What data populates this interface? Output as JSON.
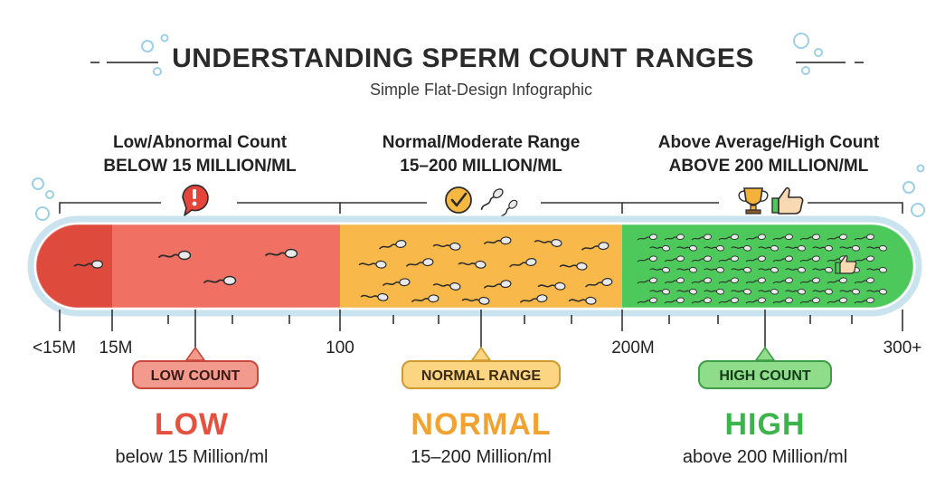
{
  "header": {
    "title": "UNDERSTANDING SPERM COUNT RANGES",
    "subtitle": "Simple Flat-Design Infographic"
  },
  "zones": [
    {
      "heading": "Low/Abnormal Count",
      "range_text": "BELOW 15 MILLION/ML",
      "badge": "LOW COUNT",
      "big_label": "LOW",
      "description": "below 15 Million/ml",
      "icon": "exclamation-speech-icon",
      "color": "#ef6a5a",
      "dark_color": "#de4a3c"
    },
    {
      "heading": "Normal/Moderate Range",
      "range_text": "15–200 MILLION/ML",
      "badge": "NORMAL RANGE",
      "big_label": "NORMAL",
      "description": "15–200 Million/ml",
      "icon": "checkmark-circle-icon",
      "color": "#f9b84a",
      "dark_color": "#f2a535"
    },
    {
      "heading": "Above Average/High Count",
      "range_text": "ABOVE 200 MILLION/ML",
      "badge": "HIGH COUNT",
      "big_label": "HIGH",
      "description": "above 200 Million/ml",
      "icon": "trophy-thumbs-up-icon",
      "color": "#4cc95a",
      "dark_color": "#3bb44c"
    }
  ],
  "axis_labels": [
    "<15M",
    "15M",
    "100",
    "200M",
    "300+"
  ],
  "colors": {
    "bar_outline": "#c9e3ef",
    "bubble": "#9dd0e6",
    "badge_low_bg": "#f39a8f",
    "badge_normal_bg": "#fcd583",
    "badge_high_bg": "#8fdc8b"
  }
}
